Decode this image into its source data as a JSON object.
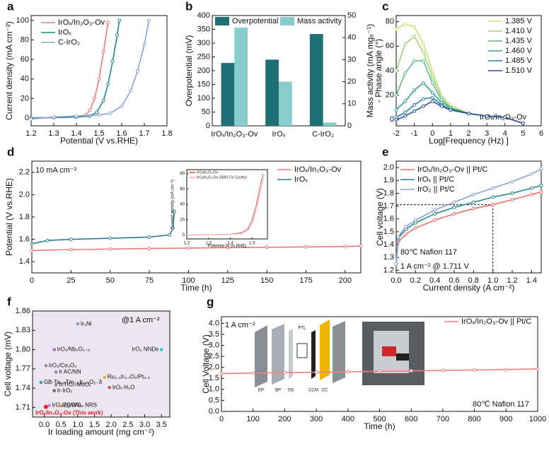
{
  "chart_data": [
    {
      "type": "line",
      "panel": "a",
      "xlabel": "Potential (V vs.RHE)",
      "ylabel": "Current density (mA cm⁻²)",
      "xlim": [
        1.2,
        1.8
      ],
      "xticks": [
        1.2,
        1.3,
        1.4,
        1.5,
        1.6,
        1.7,
        1.8
      ],
      "ylim": [
        -8,
        105
      ],
      "yticks": [
        0,
        20,
        40,
        60,
        80,
        100
      ],
      "series": [
        {
          "name": "IrOₓ/In₂O₃-Ov",
          "color": "#f07878",
          "x": [
            1.2,
            1.3,
            1.4,
            1.44,
            1.46,
            1.48,
            1.5,
            1.52,
            1.54
          ],
          "values": [
            0,
            0.5,
            1,
            3,
            8,
            20,
            40,
            68,
            98
          ]
        },
        {
          "name": "IrOₓ",
          "color": "#1f8a84",
          "x": [
            1.2,
            1.3,
            1.4,
            1.46,
            1.49,
            1.52,
            1.54,
            1.56,
            1.58,
            1.59
          ],
          "values": [
            0,
            0.5,
            1,
            2,
            6,
            18,
            35,
            58,
            85,
            100
          ]
        },
        {
          "name": "C-IrO₂",
          "color": "#8c9fd6",
          "x": [
            1.2,
            1.3,
            1.4,
            1.5,
            1.55,
            1.6,
            1.64,
            1.67,
            1.7,
            1.72
          ],
          "values": [
            -1,
            1,
            2,
            3,
            5,
            12,
            28,
            48,
            75,
            100
          ]
        }
      ]
    },
    {
      "type": "bar",
      "panel": "b",
      "ylabel": "Overpotential (mV)",
      "y2label": "Mass activity (mA mgᵢᵣ⁻¹)",
      "categories": [
        "IrOₓ/In₂O₃-Ov",
        "IrOₓ",
        "C-IrO₂"
      ],
      "ylim": [
        0,
        400
      ],
      "yticks": [
        0,
        50,
        100,
        150,
        200,
        250,
        300,
        350,
        400
      ],
      "y2lim": [
        0,
        50
      ],
      "y2ticks": [
        0,
        10,
        20,
        30,
        40,
        50
      ],
      "series": [
        {
          "name": "Overpotential",
          "color": "#1f7077",
          "values": [
            228,
            240,
            333
          ]
        },
        {
          "name": "Mass activity",
          "color": "#86cdcc",
          "axis": "y2",
          "values": [
            44.5,
            20,
            1.5
          ]
        }
      ]
    },
    {
      "type": "line",
      "panel": "c",
      "xlabel": "Log[Frequency (Hz) ]",
      "ylabel": "- Phase angle (°)",
      "xlim": [
        -2,
        6
      ],
      "xticks": [
        -2,
        -1,
        0,
        1,
        2,
        3,
        4,
        5,
        6
      ],
      "ylim": [
        -5,
        85
      ],
      "yticks": [
        0,
        20,
        40,
        60,
        80
      ],
      "annotations": [
        "IrOₓ/In₂O₃-Ov"
      ],
      "series": [
        {
          "name": "1.385 V",
          "color": "#cfe07a",
          "x": [
            -2,
            -1.5,
            -1,
            -0.5,
            0,
            0.5,
            1,
            2,
            3,
            4,
            5
          ],
          "values": [
            74,
            78,
            76,
            62,
            40,
            20,
            12,
            5,
            3,
            2,
            -3
          ]
        },
        {
          "name": "1.410 V",
          "color": "#9fd07c",
          "x": [
            -2,
            -1.5,
            -1,
            -0.5,
            0,
            0.5,
            1,
            2,
            3,
            4,
            5
          ],
          "values": [
            40,
            62,
            68,
            55,
            35,
            18,
            10,
            5,
            3,
            2,
            -3
          ]
        },
        {
          "name": "1.435 V",
          "color": "#5cbb7e",
          "x": [
            -2,
            -1.5,
            -1,
            -0.5,
            0,
            0.5,
            1,
            2,
            3,
            4,
            5
          ],
          "values": [
            20,
            38,
            48,
            48,
            30,
            16,
            10,
            5,
            3,
            2,
            -3
          ]
        },
        {
          "name": "1.460 V",
          "color": "#32a08f",
          "x": [
            -2,
            -1.5,
            -1,
            -0.5,
            0,
            0.5,
            1,
            2,
            3,
            4,
            5
          ],
          "values": [
            8,
            15,
            24,
            30,
            22,
            14,
            9,
            5,
            3,
            2,
            -3
          ]
        },
        {
          "name": "1.485 V",
          "color": "#2f7fa8",
          "x": [
            -2,
            -1.5,
            -1,
            -0.5,
            0,
            0.5,
            1,
            2,
            3,
            4,
            5
          ],
          "values": [
            2,
            6,
            12,
            17,
            18,
            12,
            8,
            5,
            3,
            2,
            -3
          ]
        },
        {
          "name": "1.510 V",
          "color": "#2b4f96",
          "x": [
            -2,
            -1.5,
            -1,
            -0.5,
            0,
            0.5,
            1,
            2,
            3,
            4,
            5
          ],
          "values": [
            0,
            3,
            7,
            11,
            15,
            11,
            8,
            5,
            3,
            2,
            -3
          ]
        }
      ]
    },
    {
      "type": "line",
      "panel": "d",
      "xlabel": "Time (h)",
      "ylabel": "Potential (V vs.RHE)",
      "xlim": [
        0,
        210
      ],
      "xticks": [
        0,
        25,
        50,
        75,
        100,
        125,
        150,
        175,
        200
      ],
      "ylim": [
        1.3,
        2.3
      ],
      "yticks": [
        1.4,
        1.6,
        1.8,
        {
          "value": 2,
          "label": "2.0"
        },
        2.2
      ],
      "annotations": [
        "10 mA cm⁻²"
      ],
      "series": [
        {
          "name": "IrOₓ/In₂O₃-Ov",
          "color": "#f07878",
          "x": [
            0,
            25,
            50,
            75,
            100,
            125,
            150,
            175,
            200,
            210
          ],
          "values": [
            1.5,
            1.508,
            1.513,
            1.518,
            1.522,
            1.526,
            1.529,
            1.532,
            1.536,
            1.54
          ]
        },
        {
          "name": "IrOₓ",
          "color": "#2e7f9a",
          "x": [
            0,
            10,
            25,
            50,
            75,
            88,
            90,
            91
          ],
          "values": [
            1.56,
            1.59,
            1.6,
            1.61,
            1.62,
            1.64,
            1.7,
            1.85
          ]
        }
      ]
    },
    {
      "type": "line",
      "xlabel": "Potential (V vs.RHE)",
      "ylabel": "Current density (mA cm⁻²)",
      "xlim": [
        1.2,
        1.57
      ],
      "xticks": [
        1.2,
        1.3,
        1.4,
        1.5
      ],
      "ylim": [
        -5,
        85
      ],
      "yticks": [
        0,
        20,
        40,
        60,
        80
      ],
      "series": [
        {
          "name": "IrOₓ/In₂O₃-Ov",
          "color": "#e05a5a",
          "x": [
            1.2,
            1.3,
            1.4,
            1.45,
            1.48,
            1.5,
            1.52,
            1.54,
            1.55
          ],
          "values": [
            0,
            0.5,
            1,
            3,
            8,
            20,
            40,
            68,
            80
          ]
        },
        {
          "name": "IrOₓ/In₂O₃-Ov (3000 CV Cycles)",
          "color": "#f5aaaa",
          "x": [
            1.2,
            1.3,
            1.4,
            1.45,
            1.48,
            1.5,
            1.52,
            1.54,
            1.555
          ],
          "values": [
            0,
            0.5,
            1,
            2,
            6,
            16,
            34,
            60,
            78
          ]
        }
      ]
    },
    {
      "type": "line",
      "panel": "e",
      "xlabel": "Current density (A cm⁻²)",
      "ylabel": "Cell voltage (V)",
      "xlim": [
        0,
        1.5
      ],
      "xticks": [
        {
          "value": 0,
          "label": "0.0"
        },
        0.2,
        0.4,
        0.6,
        0.8,
        {
          "value": 1,
          "label": "1.0"
        },
        1.2,
        1.4
      ],
      "ylim": [
        1.18,
        2.05
      ],
      "yticks": [
        1.2,
        1.3,
        1.4,
        1.5,
        1.6,
        1.7,
        1.8,
        1.9,
        {
          "value": 2,
          "label": "2.0"
        }
      ],
      "annotations": [
        "80℃ Nafion 117",
        "1 A cm⁻² @ 1.711 V"
      ],
      "guide": {
        "x": 1,
        "y": 1.711
      },
      "series": [
        {
          "name": "IrOₓ/In₂O₃-Ov || Pt/C",
          "color": "#ee6e6e",
          "x": [
            0,
            0.02,
            0.1,
            0.2,
            0.4,
            0.6,
            0.8,
            1,
            1.2,
            1.4,
            1.5
          ],
          "values": [
            1.25,
            1.42,
            1.48,
            1.53,
            1.59,
            1.64,
            1.68,
            1.711,
            1.75,
            1.79,
            1.81
          ]
        },
        {
          "name": "IrOₓ || Pt/C",
          "color": "#1f8a84",
          "x": [
            0,
            0.02,
            0.1,
            0.2,
            0.4,
            0.6,
            0.8,
            1,
            1.2,
            1.4,
            1.5
          ],
          "values": [
            1.25,
            1.45,
            1.52,
            1.57,
            1.64,
            1.69,
            1.73,
            1.77,
            1.8,
            1.84,
            1.86
          ]
        },
        {
          "name": "IrO₂ || Pt/C",
          "color": "#8c9fd6",
          "x": [
            0,
            0.02,
            0.1,
            0.2,
            0.4,
            0.6,
            0.8,
            1,
            1.2,
            1.4,
            1.5
          ],
          "values": [
            1.25,
            1.46,
            1.54,
            1.59,
            1.67,
            1.73,
            1.79,
            1.84,
            1.89,
            1.95,
            1.99
          ]
        }
      ]
    },
    {
      "type": "scatter",
      "panel": "f",
      "xlabel": "Ir loading amount (mg cm⁻²)",
      "ylabel": "Cell voltage (mV)",
      "xlim": [
        -0.35,
        3.75
      ],
      "xticks": [
        {
          "value": 0,
          "label": "0.0"
        },
        0.5,
        {
          "value": 1,
          "label": "1.0"
        },
        1.5,
        {
          "value": 2,
          "label": "2.0"
        },
        2.5,
        {
          "value": 3,
          "label": "3.0"
        },
        3.5
      ],
      "ylim": [
        1.695,
        1.86
      ],
      "yticks": [
        1.71,
        1.74,
        1.77,
        {
          "value": 1.8,
          "label": "1.80"
        },
        1.83,
        1.86
      ],
      "annotations": [
        "@1 A cm⁻²"
      ],
      "points": [
        {
          "name": "Ir₃Ni",
          "color": "#7a9fd0",
          "x": 1,
          "y": 1.84
        },
        {
          "name": "IrO₂ NNDs",
          "color": "#33c4d6",
          "x": 3.5,
          "y": 1.8
        },
        {
          "name": "IrO₂/Nb₂O₅₋ₓ",
          "color": "#a070c0",
          "x": 0.3,
          "y": 1.8
        },
        {
          "name": "IrO₂/Co₃O₄",
          "color": "#8888aa",
          "x": 0.05,
          "y": 1.775
        },
        {
          "name": "Ir AC/NN",
          "color": "#8888aa",
          "x": 0.35,
          "y": 1.765
        },
        {
          "name": "GB-Ta₀.₁Tm₀.₁Ir₀.₈O₂₋δ",
          "color": "#2a9d8f",
          "x": -0.1,
          "y": 1.749
        },
        {
          "name": "Ru₀.₃Ir₀.₇O₂/Pt₀.₅",
          "color": "#e0b030",
          "x": 1.8,
          "y": 1.757
        },
        {
          "name": "Ir/TiO₂-MoOₓ",
          "color": "#8888aa",
          "x": 0.35,
          "y": 1.745
        },
        {
          "name": "Ir-IrO₂",
          "color": "#6b6b3a",
          "x": 0.3,
          "y": 1.736
        },
        {
          "name": "IrOₓ·H₂O",
          "color": "#d04848",
          "x": 1.95,
          "y": 1.741
        },
        {
          "name": "IrOₓ/Zr₂ON₂",
          "color": "#e07ac0",
          "x": 0.15,
          "y": 1.713
        },
        {
          "name": "Ir@WO₃ NRS",
          "color": "#e09050",
          "x": 0.45,
          "y": 1.713
        },
        {
          "name": "IrOₓ/In₂O₃-Ov (This work)",
          "color": "#e82020",
          "x": 0.05,
          "y": 1.711
        }
      ]
    },
    {
      "type": "line",
      "panel": "g",
      "xlabel": "Time (h)",
      "ylabel": "Cell Voltage (V)",
      "xlim": [
        0,
        1000
      ],
      "xticks": [
        0,
        100,
        200,
        300,
        400,
        500,
        600,
        700,
        800,
        900,
        1000
      ],
      "ylim": [
        0,
        4.3
      ],
      "yticks": [
        {
          "value": 0,
          "label": "0.0"
        },
        0.5,
        {
          "value": 1,
          "label": "1.0"
        },
        1.5,
        {
          "value": 2,
          "label": "2.0"
        },
        2.5,
        {
          "value": 3,
          "label": "3.0"
        },
        3.5,
        {
          "value": 4,
          "label": "4.0"
        }
      ],
      "annotations": [
        "1 A cm⁻²",
        "80℃ Nafion 117"
      ],
      "inset_labels": [
        "EP",
        "BP",
        "SG",
        "PTL",
        "CCM",
        "CC"
      ],
      "series": [
        {
          "name": "IrOₓ/In₂O₃-Ov || Pt/C",
          "color": "#f08080",
          "x": [
            0,
            100,
            200,
            300,
            400,
            500,
            600,
            700,
            800,
            900,
            1000
          ],
          "values": [
            1.72,
            1.74,
            1.76,
            1.78,
            1.8,
            1.82,
            1.84,
            1.86,
            1.88,
            1.9,
            1.93
          ]
        }
      ]
    }
  ]
}
